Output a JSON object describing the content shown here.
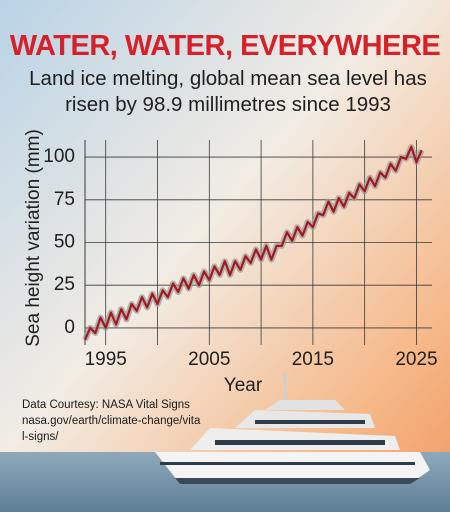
{
  "chart_data": {
    "type": "line",
    "title": "WATER, WATER, EVERYWHERE",
    "subtitle": "Land ice melting, global mean sea level has risen by 98.9 millimetres since 1993",
    "source_label": "Data Courtesy: NASA Vital Signs",
    "source_url": "nasa.gov/earth/climate-change/vital-signs/",
    "x_label": "Year",
    "y_label": "Sea height variation (mm)",
    "x": [
      1993,
      1993.5,
      1994,
      1994.5,
      1995,
      1995.5,
      1996,
      1996.5,
      1997,
      1997.5,
      1998,
      1998.5,
      1999,
      1999.5,
      2000,
      2000.5,
      2001,
      2001.5,
      2002,
      2002.5,
      2003,
      2003.5,
      2004,
      2004.5,
      2005,
      2005.5,
      2006,
      2006.5,
      2007,
      2007.5,
      2008,
      2008.5,
      2009,
      2009.5,
      2010,
      2010.5,
      2011,
      2011.5,
      2012,
      2012.5,
      2013,
      2013.5,
      2014,
      2014.5,
      2015,
      2015.5,
      2016,
      2016.5,
      2017,
      2017.5,
      2018,
      2018.5,
      2019,
      2019.5,
      2020,
      2020.5,
      2021,
      2021.5,
      2022,
      2022.5,
      2023,
      2023.5,
      2024,
      2024.5,
      2025,
      2025.5
    ],
    "series": [
      {
        "name": "Sea height variation",
        "color": "#a3191f",
        "values": [
          -7,
          0,
          -3,
          6,
          0,
          9,
          2,
          11,
          5,
          14,
          10,
          18,
          12,
          20,
          14,
          22,
          18,
          26,
          21,
          29,
          23,
          31,
          25,
          33,
          28,
          36,
          31,
          39,
          31,
          39,
          34,
          42,
          38,
          46,
          40,
          48,
          40,
          48,
          48,
          56,
          51,
          59,
          54,
          62,
          59,
          67,
          66,
          74,
          68,
          76,
          71,
          79,
          76,
          84,
          80,
          88,
          83,
          91,
          88,
          96,
          92,
          100,
          99,
          106,
          97,
          104
        ]
      }
    ],
    "band_color": "#9a9a9a",
    "xlim": [
      1993,
      2026.5
    ],
    "ylim": [
      -10,
      110
    ],
    "xticks": [
      1995,
      2005,
      2015,
      2025
    ],
    "xgrid": [
      1995,
      2000,
      2005,
      2010,
      2015,
      2020,
      2025
    ],
    "yticks": [
      0,
      25,
      50,
      75,
      100
    ],
    "grid": true
  }
}
